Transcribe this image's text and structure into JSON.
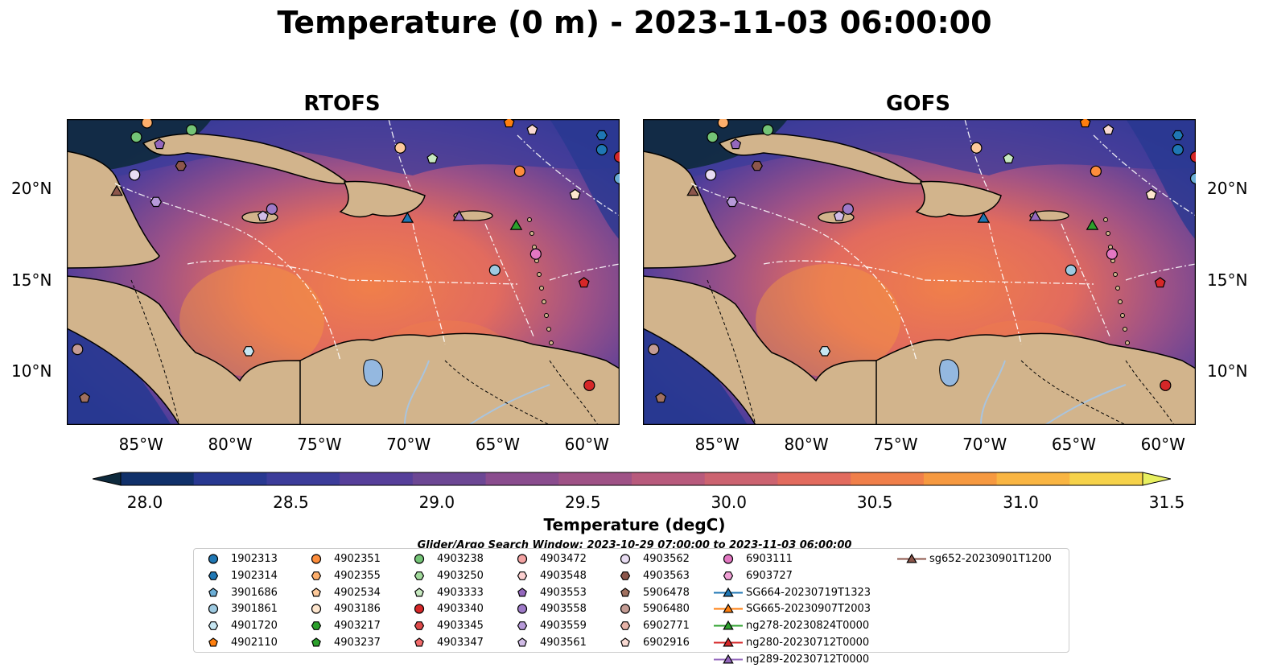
{
  "title": "Temperature (0 m) - 2023-11-03 06:00:00",
  "panels": [
    {
      "title": "RTOFS"
    },
    {
      "title": "GOFS"
    }
  ],
  "lat_ticks": [
    "20°N",
    "15°N",
    "10°N"
  ],
  "lon_ticks": [
    "85°W",
    "80°W",
    "75°W",
    "70°W",
    "65°W",
    "60°W"
  ],
  "colorbar": {
    "label": "Temperature (degC)",
    "ticks": [
      "28.0",
      "28.5",
      "29.0",
      "29.5",
      "30.0",
      "30.5",
      "31.0",
      "31.5"
    ],
    "colors": [
      "#0e2a3d",
      "#10306a",
      "#283891",
      "#3c3c9a",
      "#563f9a",
      "#6c4794",
      "#8a4c8e",
      "#9f5286",
      "#b85a7c",
      "#cc6370",
      "#e26b5e",
      "#f07f4a",
      "#f69940",
      "#f9b542",
      "#f6d24a",
      "#e8f060"
    ]
  },
  "search_window": "Glider/Argo Search Window: 2023-10-29 07:00:00 to 2023-11-03 06:00:00",
  "chart_data": {
    "type": "heatmap",
    "title": "Temperature (0 m) - 2023-11-03 06:00:00",
    "panels": [
      "RTOFS",
      "GOFS"
    ],
    "xlim": [
      -89,
      -58
    ],
    "ylim": [
      7,
      24
    ],
    "vmin": 28.0,
    "vmax": 31.5,
    "colorbar_label": "Temperature (degC)"
  },
  "legend": [
    {
      "label": "1902313",
      "color": "#1f77b4",
      "marker": "circle"
    },
    {
      "label": "1902314",
      "color": "#1f77b4",
      "marker": "hexagon"
    },
    {
      "label": "3901686",
      "color": "#6baed6",
      "marker": "pentagon"
    },
    {
      "label": "3901861",
      "color": "#9ecae1",
      "marker": "circle"
    },
    {
      "label": "4901720",
      "color": "#c6e6f2",
      "marker": "hexagon"
    },
    {
      "label": "4902110",
      "color": "#ff7f0e",
      "marker": "pentagon"
    },
    {
      "label": "4902351",
      "color": "#fd8d3c",
      "marker": "circle"
    },
    {
      "label": "4902355",
      "color": "#fdae6b",
      "marker": "hexagon"
    },
    {
      "label": "4902534",
      "color": "#fdc99a",
      "marker": "pentagon"
    },
    {
      "label": "4903186",
      "color": "#fee6ce",
      "marker": "circle"
    },
    {
      "label": "4903217",
      "color": "#2ca02c",
      "marker": "hexagon"
    },
    {
      "label": "4903237",
      "color": "#2ca02c",
      "marker": "pentagon"
    },
    {
      "label": "4903238",
      "color": "#74c476",
      "marker": "circle"
    },
    {
      "label": "4903250",
      "color": "#a1d99b",
      "marker": "hexagon"
    },
    {
      "label": "4903333",
      "color": "#c7e9c0",
      "marker": "pentagon"
    },
    {
      "label": "4903340",
      "color": "#d62728",
      "marker": "circle"
    },
    {
      "label": "4903345",
      "color": "#de4a4a",
      "marker": "hexagon"
    },
    {
      "label": "4903347",
      "color": "#f26a6a",
      "marker": "pentagon"
    },
    {
      "label": "4903472",
      "color": "#f4a3a3",
      "marker": "circle"
    },
    {
      "label": "4903548",
      "color": "#fcd0d0",
      "marker": "hexagon"
    },
    {
      "label": "4903553",
      "color": "#9467bd",
      "marker": "pentagon"
    },
    {
      "label": "4903558",
      "color": "#9e7ac8",
      "marker": "circle"
    },
    {
      "label": "4903559",
      "color": "#b79ad9",
      "marker": "hexagon"
    },
    {
      "label": "4903561",
      "color": "#d1bce6",
      "marker": "pentagon"
    },
    {
      "label": "4903562",
      "color": "#e8dcf2",
      "marker": "circle"
    },
    {
      "label": "4903563",
      "color": "#8c564b",
      "marker": "hexagon"
    },
    {
      "label": "5906478",
      "color": "#a0705f",
      "marker": "pentagon"
    },
    {
      "label": "5906480",
      "color": "#c49c94",
      "marker": "circle"
    },
    {
      "label": "6902771",
      "color": "#e7b3a8",
      "marker": "hexagon"
    },
    {
      "label": "6902916",
      "color": "#f8d9d2",
      "marker": "pentagon"
    },
    {
      "label": "6903111",
      "color": "#e377c2",
      "marker": "circle"
    },
    {
      "label": "6903727",
      "color": "#f0a0d6",
      "marker": "hexagon"
    },
    {
      "label": "SG664-20230719T1323",
      "color": "#1f77b4",
      "marker": "triangle"
    },
    {
      "label": "SG665-20230907T2003",
      "color": "#ff7f0e",
      "marker": "triangle"
    },
    {
      "label": "ng278-20230824T0000",
      "color": "#2ca02c",
      "marker": "triangle"
    },
    {
      "label": "ng280-20230712T0000",
      "color": "#d62728",
      "marker": "triangle"
    },
    {
      "label": "ng289-20230712T0000",
      "color": "#9467bd",
      "marker": "triangle"
    },
    {
      "label": "sg652-20230901T1200",
      "color": "#8c564b",
      "marker": "triangle"
    }
  ]
}
